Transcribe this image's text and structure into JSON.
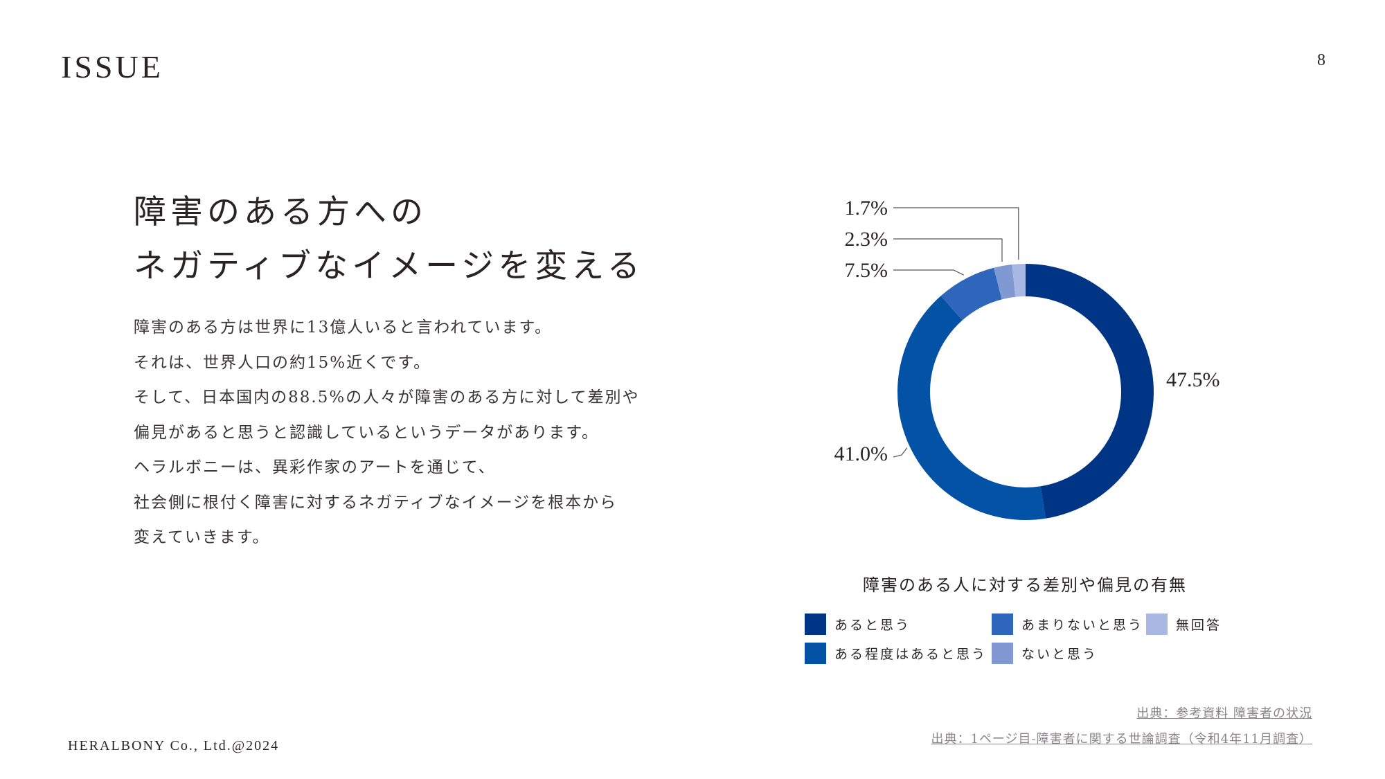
{
  "header": {
    "section_label": "ISSUE",
    "page_number": "8"
  },
  "headline": [
    "障害のある方への",
    "ネガティブなイメージを変える"
  ],
  "body_lines": [
    "障害のある方は世界に13億人いると言われています。",
    "それは、世界人口の約15%近くです。",
    "そして、日本国内の88.5%の人々が障害のある方に対して差別や",
    "偏見があると思うと認識しているというデータがあります。",
    "ヘラルボニーは、異彩作家のアートを通じて、",
    "社会側に根付く障害に対するネガティブなイメージを根本から",
    "変えていきます。"
  ],
  "footer": {
    "company": "HERALBONY Co., Ltd.@2024"
  },
  "sources": [
    "出典：参考資料 障害者の状況",
    "出典：1ページ目-障害者に関する世論調査（令和4年11月調査）"
  ],
  "chart_data": {
    "type": "pie",
    "variant": "donut",
    "title": "障害のある人に対する差別や偏見の有無",
    "categories": [
      "あると思う",
      "ある程度はあると思う",
      "あまりないと思う",
      "ないと思う",
      "無回答"
    ],
    "values": [
      47.5,
      41.0,
      7.5,
      2.3,
      1.7
    ],
    "value_labels": [
      "47.5%",
      "41.0%",
      "7.5%",
      "2.3%",
      "1.7%"
    ],
    "colors": [
      "#003585",
      "#0452a6",
      "#2d66bb",
      "#8099d2",
      "#a9b8e3"
    ],
    "legend_placement": "bottom"
  }
}
